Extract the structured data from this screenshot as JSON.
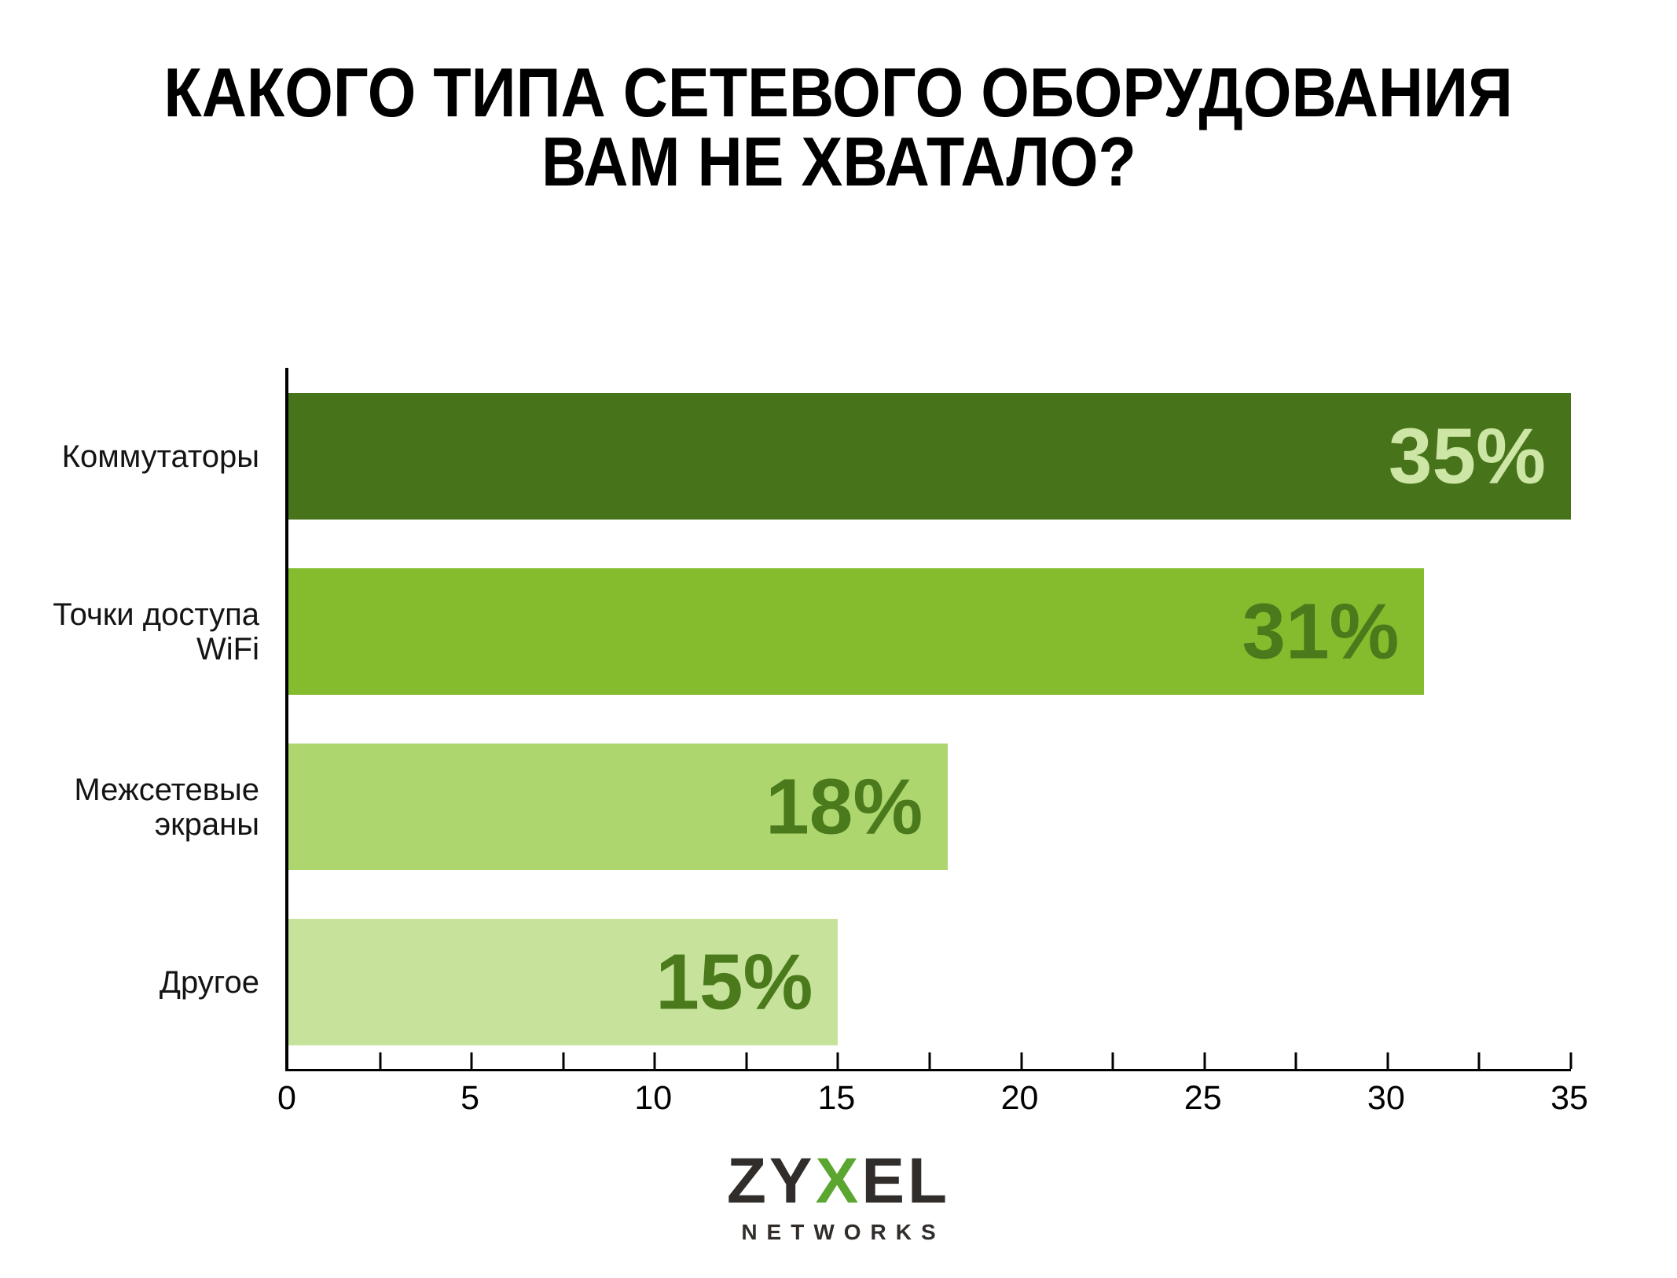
{
  "title": {
    "line1": "КАКОГО ТИПА СЕТЕВОГО ОБОРУДОВАНИЯ",
    "line2": "ВАМ НЕ ХВАТАЛО?"
  },
  "chart_data": {
    "type": "bar",
    "orientation": "horizontal",
    "title": "КАКОГО ТИПА СЕТЕВОГО ОБОРУДОВАНИЯ ВАМ НЕ ХВАТАЛО?",
    "categories": [
      "Коммутаторы",
      "Точки доступа WiFi",
      "Межсетевые экраны",
      "Другое"
    ],
    "values": [
      35,
      31,
      18,
      15
    ],
    "value_labels": [
      "35%",
      "31%",
      "18%",
      "15%"
    ],
    "xlabel": "",
    "ylabel": "",
    "xlim": [
      0,
      35
    ],
    "x_ticks": [
      0,
      5,
      10,
      15,
      20,
      25,
      30,
      35
    ],
    "x_minor_tick_step": 2.5,
    "grid": false,
    "legend": false,
    "bars": [
      {
        "category_lines": [
          "Коммутаторы"
        ],
        "value": 35,
        "label": "35%",
        "color": "#47731A",
        "label_color": "#CDE6A5"
      },
      {
        "category_lines": [
          "Точки доступа",
          "WiFi"
        ],
        "value": 31,
        "label": "31%",
        "color": "#85BC2E",
        "label_color": "#4A7A1B"
      },
      {
        "category_lines": [
          "Межсетевые",
          "экраны"
        ],
        "value": 18,
        "label": "18%",
        "color": "#AED66F",
        "label_color": "#4A7A1B"
      },
      {
        "category_lines": [
          "Другое"
        ],
        "value": 15,
        "label": "15%",
        "color": "#C7E29B",
        "label_color": "#4A7A1B"
      }
    ]
  },
  "colors": {
    "background": "#FFFFFF",
    "axis": "#000000",
    "text": "#141414",
    "bar_darkest": "#47731A",
    "bar_medium": "#85BC2E",
    "bar_light": "#AED66F",
    "bar_pale": "#C7E29B"
  },
  "logo": {
    "part1": "ZY",
    "part2": "X",
    "part3": "EL",
    "subtitle": "NETWORKS",
    "dark_color": "#312D2A",
    "green_color": "#5BA631"
  }
}
